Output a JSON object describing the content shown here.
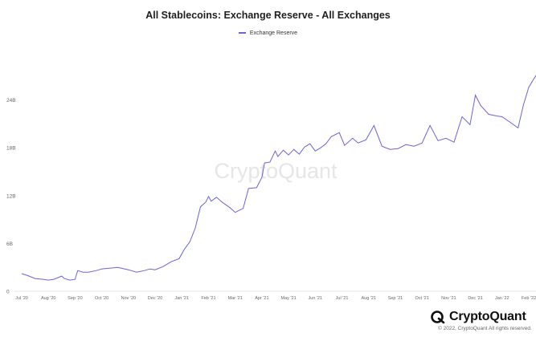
{
  "chart_data": {
    "type": "line",
    "title": "All Stablecoins: Exchange Reserve - All Exchanges",
    "xlabel": "",
    "ylabel": "",
    "ylim": [
      0,
      30
    ],
    "yticks": [
      0,
      6,
      12,
      18,
      24
    ],
    "ytick_labels": [
      "0",
      "6B",
      "12B",
      "18B",
      "24B"
    ],
    "xticks": [
      "Jul '20",
      "Aug '20",
      "Sep '20",
      "Oct '20",
      "Nov '20",
      "Dec '20",
      "Jan '21",
      "Feb '21",
      "Mar '21",
      "Apr '21",
      "May '21",
      "Jun '21",
      "Jul '21",
      "Aug '21",
      "Sep '21",
      "Oct '21",
      "Nov '21",
      "Dec '21",
      "Jan '22",
      "Feb '22"
    ],
    "legend_position": "top-center",
    "grid": false,
    "series": [
      {
        "name": "Exchange Reserve",
        "color": "#6c63d8",
        "x": [
          0,
          0.2,
          0.5,
          0.8,
          1.0,
          1.2,
          1.5,
          1.6,
          1.8,
          2.0,
          2.1,
          2.3,
          2.5,
          2.8,
          3.0,
          3.3,
          3.6,
          4.0,
          4.3,
          4.6,
          4.8,
          5.0,
          5.3,
          5.6,
          5.9,
          6.1,
          6.3,
          6.5,
          6.7,
          6.9,
          7.0,
          7.1,
          7.3,
          7.5,
          7.8,
          8.0,
          8.3,
          8.5,
          8.8,
          9.0,
          9.1,
          9.3,
          9.5,
          9.6,
          9.8,
          10.0,
          10.2,
          10.4,
          10.6,
          10.8,
          11.0,
          11.2,
          11.4,
          11.6,
          11.9,
          12.1,
          12.4,
          12.6,
          12.9,
          13.2,
          13.5,
          13.8,
          14.1,
          14.4,
          14.7,
          15.0,
          15.3,
          15.6,
          15.9,
          16.2,
          16.5,
          16.8,
          17.0,
          17.2,
          17.5,
          17.8,
          18.0,
          18.3,
          18.6,
          18.8,
          19.0,
          19.2,
          19.3
        ],
        "values": [
          2.2,
          2.0,
          1.6,
          1.5,
          1.4,
          1.5,
          1.9,
          1.6,
          1.4,
          1.5,
          2.6,
          2.4,
          2.4,
          2.6,
          2.8,
          2.9,
          3.0,
          2.7,
          2.4,
          2.6,
          2.8,
          2.7,
          3.1,
          3.7,
          4.1,
          5.3,
          6.2,
          7.9,
          10.6,
          11.2,
          11.9,
          11.3,
          11.8,
          11.2,
          10.5,
          9.9,
          10.4,
          12.9,
          13.0,
          14.3,
          16.1,
          16.2,
          17.6,
          16.9,
          17.7,
          17.1,
          17.8,
          17.2,
          18.1,
          18.5,
          17.6,
          18.0,
          18.5,
          19.4,
          19.9,
          18.3,
          19.2,
          18.6,
          19.0,
          20.8,
          18.2,
          17.8,
          17.9,
          18.4,
          18.2,
          18.6,
          20.8,
          18.9,
          19.2,
          18.7,
          21.9,
          20.9,
          24.6,
          23.3,
          22.2,
          22.0,
          21.9,
          21.2,
          20.5,
          23.4,
          25.6,
          26.7,
          27.2
        ]
      }
    ]
  },
  "watermark": "CryptoQuant",
  "logo": {
    "name": "CryptoQuant"
  },
  "copyright": "© 2022, CryptoQuant All rights reserved."
}
